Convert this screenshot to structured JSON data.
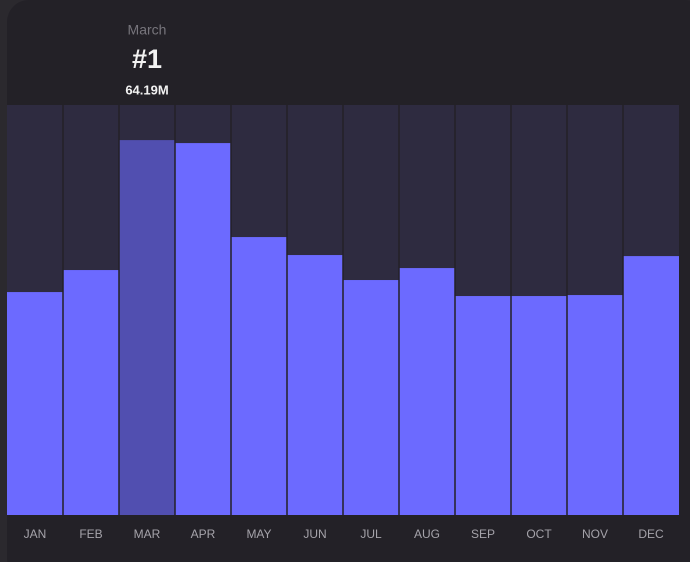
{
  "chart_data": {
    "type": "bar",
    "categories": [
      "JAN",
      "FEB",
      "MAR",
      "APR",
      "MAY",
      "JUN",
      "JUL",
      "AUG",
      "SEP",
      "OCT",
      "NOV",
      "DEC"
    ],
    "values": [
      38.17,
      41.94,
      64.19,
      63.68,
      47.59,
      44.51,
      40.23,
      42.28,
      37.49,
      37.49,
      37.66,
      44.33
    ],
    "value_labels": [
      null,
      null,
      "64.19M",
      null,
      null,
      null,
      null,
      null,
      null,
      null,
      null,
      null
    ],
    "colors": [
      "#6c6aff",
      "#6c6aff",
      "#514fb0",
      "#6c6aff",
      "#6c6aff",
      "#6c6aff",
      "#6c6aff",
      "#6c6aff",
      "#6c6aff",
      "#6c6aff",
      "#6c6aff",
      "#6c6aff"
    ],
    "annotation": {
      "label": "March",
      "rank": "#1"
    },
    "ylim": [
      0,
      70.2
    ]
  }
}
